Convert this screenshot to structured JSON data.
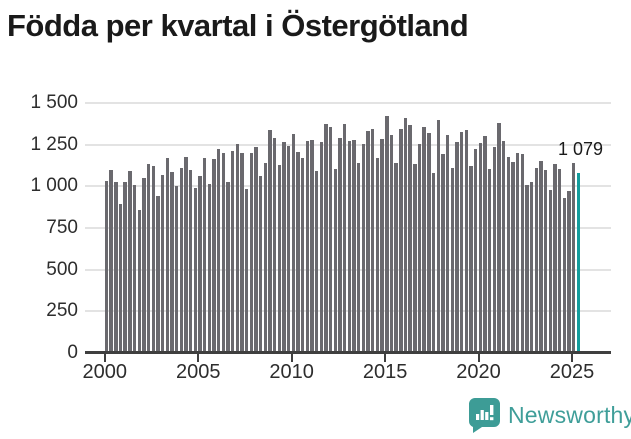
{
  "title": "Födda per kvartal i Östergötland",
  "chart_data": {
    "type": "bar",
    "title": "Födda per kvartal i Östergötland",
    "xlabel": "",
    "ylabel": "",
    "ylim": [
      0,
      1500
    ],
    "grid": true,
    "legend": "none",
    "y_tick_values": [
      0,
      250,
      500,
      750,
      1000,
      1250,
      1500
    ],
    "y_tick_labels": [
      "0",
      "250",
      "500",
      "750",
      "1 000",
      "1 250",
      "1 500"
    ],
    "x_tick_labels": [
      "2000",
      "2005",
      "2010",
      "2015",
      "2020",
      "2025"
    ],
    "x_tick_bar_indices": [
      0,
      20,
      40,
      60,
      80,
      100
    ],
    "bar_color": "#6a696e",
    "highlight_color": "#149c9c",
    "highlight_last_bar": true,
    "last_value_label": "1 079",
    "last_value": 1079,
    "start_period": "2000Q1",
    "end_period": "2025Q2",
    "categories": [
      "2000Q1",
      "2000Q2",
      "2000Q3",
      "2000Q4",
      "2001Q1",
      "2001Q2",
      "2001Q3",
      "2001Q4",
      "2002Q1",
      "2002Q2",
      "2002Q3",
      "2002Q4",
      "2003Q1",
      "2003Q2",
      "2003Q3",
      "2003Q4",
      "2004Q1",
      "2004Q2",
      "2004Q3",
      "2004Q4",
      "2005Q1",
      "2005Q2",
      "2005Q3",
      "2005Q4",
      "2006Q1",
      "2006Q2",
      "2006Q3",
      "2006Q4",
      "2007Q1",
      "2007Q2",
      "2007Q3",
      "2007Q4",
      "2008Q1",
      "2008Q2",
      "2008Q3",
      "2008Q4",
      "2009Q1",
      "2009Q2",
      "2009Q3",
      "2009Q4",
      "2010Q1",
      "2010Q2",
      "2010Q3",
      "2010Q4",
      "2011Q1",
      "2011Q2",
      "2011Q3",
      "2011Q4",
      "2012Q1",
      "2012Q2",
      "2012Q3",
      "2012Q4",
      "2013Q1",
      "2013Q2",
      "2013Q3",
      "2013Q4",
      "2014Q1",
      "2014Q2",
      "2014Q3",
      "2014Q4",
      "2015Q1",
      "2015Q2",
      "2015Q3",
      "2015Q4",
      "2016Q1",
      "2016Q2",
      "2016Q3",
      "2016Q4",
      "2017Q1",
      "2017Q2",
      "2017Q3",
      "2017Q4",
      "2018Q1",
      "2018Q2",
      "2018Q3",
      "2018Q4",
      "2019Q1",
      "2019Q2",
      "2019Q3",
      "2019Q4",
      "2020Q1",
      "2020Q2",
      "2020Q3",
      "2020Q4",
      "2021Q1",
      "2021Q2",
      "2021Q3",
      "2021Q4",
      "2022Q1",
      "2022Q2",
      "2022Q3",
      "2022Q4",
      "2023Q1",
      "2023Q2",
      "2023Q3",
      "2023Q4",
      "2024Q1",
      "2024Q2",
      "2024Q3",
      "2024Q4",
      "2025Q1",
      "2025Q2"
    ],
    "values": [
      1031,
      1096,
      1027,
      897,
      1027,
      1090,
      1007,
      861,
      1049,
      1134,
      1122,
      941,
      1071,
      1172,
      1086,
      1005,
      1108,
      1174,
      1101,
      989,
      1061,
      1170,
      1017,
      1162,
      1222,
      1200,
      1025,
      1214,
      1252,
      1200,
      987,
      1198,
      1236,
      1061,
      1142,
      1336,
      1292,
      1126,
      1266,
      1242,
      1312,
      1208,
      1168,
      1272,
      1278,
      1092,
      1268,
      1372,
      1356,
      1102,
      1292,
      1372,
      1272,
      1278,
      1142,
      1252,
      1332,
      1342,
      1172,
      1282,
      1422,
      1308,
      1142,
      1342,
      1408,
      1366,
      1132,
      1256,
      1357,
      1322,
      1082,
      1397,
      1196,
      1308,
      1112,
      1266,
      1328,
      1336,
      1122,
      1222,
      1258,
      1302,
      1102,
      1238,
      1382,
      1272,
      1178,
      1148,
      1202,
      1192,
      1010,
      1025,
      1112,
      1152,
      1098,
      981,
      1132,
      1102,
      931,
      975,
      1142,
      1079
    ]
  },
  "footer": {
    "brand": "Newsworthy"
  }
}
